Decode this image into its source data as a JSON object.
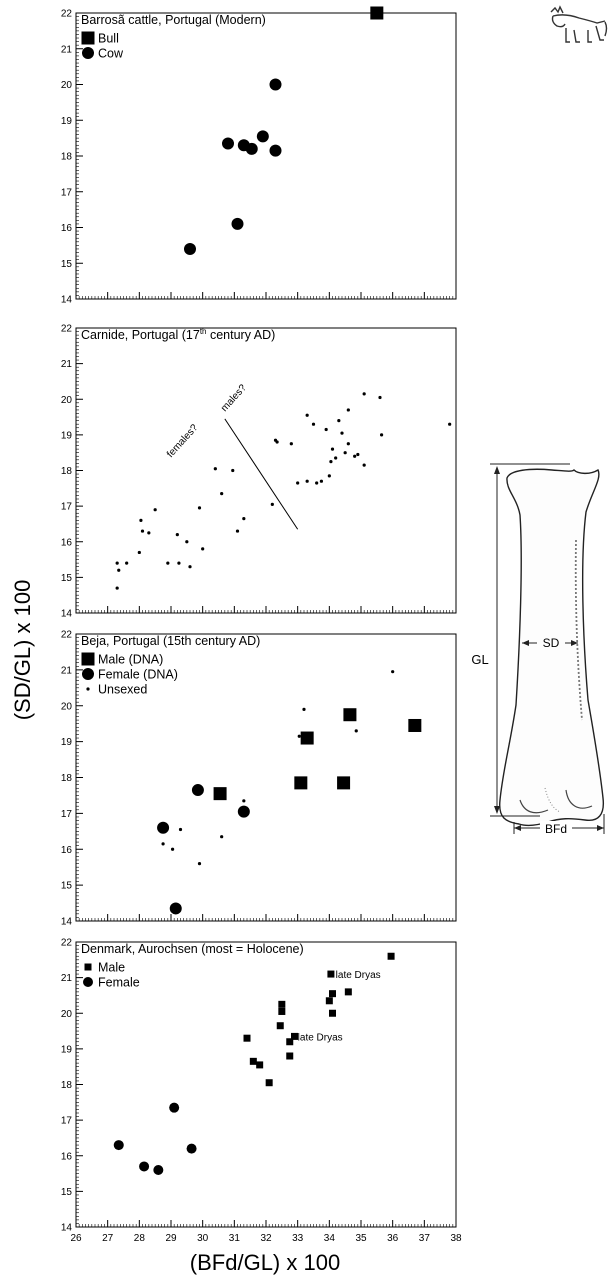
{
  "figure": {
    "ylabel": "(SD/GL) x 100",
    "xlabel": "(BFd/GL) x 100",
    "x_ticks": [
      "26",
      "27",
      "28",
      "29",
      "30",
      "31",
      "32",
      "33",
      "34",
      "35",
      "36",
      "37",
      "38"
    ],
    "y_ticks": [
      "14",
      "15",
      "16",
      "17",
      "18",
      "19",
      "20",
      "21",
      "22"
    ],
    "diagram_labels": {
      "gl": "GL",
      "sd": "SD",
      "bfd": "BFd"
    },
    "icon": "cow-icon"
  },
  "chart_data": [
    {
      "type": "scatter",
      "title": "Barrosã cattle, Portugal (Modern)",
      "xlim": [
        26,
        38
      ],
      "ylim": [
        14,
        22
      ],
      "legend": {
        "placement": "top-left",
        "entries": [
          "Bull",
          "Cow"
        ]
      },
      "series": [
        {
          "name": "Bull",
          "marker": "square-large",
          "points": [
            [
              35.5,
              22.0
            ]
          ]
        },
        {
          "name": "Cow",
          "marker": "circle-large",
          "points": [
            [
              29.6,
              15.4
            ],
            [
              30.8,
              18.35
            ],
            [
              31.1,
              16.1
            ],
            [
              31.3,
              18.3
            ],
            [
              31.55,
              18.2
            ],
            [
              31.9,
              18.55
            ],
            [
              32.3,
              18.15
            ],
            [
              32.3,
              20.0
            ]
          ]
        }
      ]
    },
    {
      "type": "scatter",
      "title_main": "Carnide, Portugal (17",
      "title_sup": "th",
      "title_rest": " century AD)",
      "xlim": [
        26,
        38
      ],
      "ylim": [
        14,
        22
      ],
      "annotations": [
        "females?",
        "males?"
      ],
      "divider": [
        [
          30.7,
          19.45
        ],
        [
          33.0,
          16.35
        ]
      ],
      "series": [
        {
          "name": "",
          "marker": "dot",
          "points": [
            [
              27.3,
              14.7
            ],
            [
              27.3,
              15.4
            ],
            [
              27.35,
              15.2
            ],
            [
              27.6,
              15.4
            ],
            [
              28.0,
              15.7
            ],
            [
              28.05,
              16.6
            ],
            [
              28.1,
              16.3
            ],
            [
              28.3,
              16.25
            ],
            [
              28.5,
              16.9
            ],
            [
              28.9,
              15.4
            ],
            [
              29.2,
              16.2
            ],
            [
              29.25,
              15.4
            ],
            [
              29.6,
              15.3
            ],
            [
              29.5,
              16.0
            ],
            [
              29.9,
              16.95
            ],
            [
              30.0,
              15.8
            ],
            [
              30.4,
              18.05
            ],
            [
              30.6,
              17.35
            ],
            [
              30.95,
              18.0
            ],
            [
              31.1,
              16.3
            ],
            [
              31.3,
              16.65
            ],
            [
              32.2,
              17.05
            ],
            [
              32.3,
              18.85
            ],
            [
              32.35,
              18.8
            ],
            [
              32.8,
              18.75
            ],
            [
              33.0,
              17.65
            ],
            [
              33.3,
              19.55
            ],
            [
              33.3,
              17.7
            ],
            [
              33.5,
              19.3
            ],
            [
              33.6,
              17.65
            ],
            [
              33.75,
              17.7
            ],
            [
              33.9,
              19.15
            ],
            [
              34.0,
              17.85
            ],
            [
              34.05,
              18.25
            ],
            [
              34.1,
              18.6
            ],
            [
              34.2,
              18.35
            ],
            [
              34.3,
              19.4
            ],
            [
              34.4,
              19.05
            ],
            [
              34.5,
              18.5
            ],
            [
              34.6,
              18.75
            ],
            [
              34.6,
              19.7
            ],
            [
              34.8,
              18.4
            ],
            [
              34.9,
              18.45
            ],
            [
              35.1,
              18.15
            ],
            [
              35.1,
              20.15
            ],
            [
              35.6,
              20.05
            ],
            [
              35.65,
              19.0
            ],
            [
              37.8,
              19.3
            ]
          ]
        }
      ]
    },
    {
      "type": "scatter",
      "title": "Beja, Portugal (15th century AD)",
      "xlim": [
        26,
        38
      ],
      "ylim": [
        14,
        22
      ],
      "legend": {
        "placement": "top-left",
        "entries": [
          "Male (DNA)",
          "Female (DNA)",
          "Unsexed"
        ]
      },
      "series": [
        {
          "name": "Male (DNA)",
          "marker": "square-large",
          "points": [
            [
              30.55,
              17.55
            ],
            [
              33.1,
              17.85
            ],
            [
              33.3,
              19.1
            ],
            [
              34.45,
              17.85
            ],
            [
              34.65,
              19.75
            ],
            [
              36.7,
              19.45
            ]
          ]
        },
        {
          "name": "Female (DNA)",
          "marker": "circle-large",
          "points": [
            [
              28.75,
              16.6
            ],
            [
              29.15,
              14.35
            ],
            [
              29.85,
              17.65
            ],
            [
              31.3,
              17.05
            ]
          ]
        },
        {
          "name": "Unsexed",
          "marker": "dot",
          "points": [
            [
              28.75,
              16.15
            ],
            [
              29.05,
              16.0
            ],
            [
              29.3,
              16.55
            ],
            [
              29.9,
              15.6
            ],
            [
              30.6,
              16.35
            ],
            [
              31.3,
              17.35
            ],
            [
              33.05,
              19.15
            ],
            [
              33.2,
              19.9
            ],
            [
              34.85,
              19.3
            ],
            [
              36.0,
              20.95
            ]
          ]
        }
      ]
    },
    {
      "type": "scatter",
      "title": "Denmark, Aurochsen (most = Holocene)",
      "xlim": [
        26,
        38
      ],
      "ylim": [
        14,
        22
      ],
      "legend": {
        "placement": "top-left",
        "entries": [
          "Male",
          "Female"
        ]
      },
      "annotations": [
        "late Dryas",
        "late Dryas"
      ],
      "series": [
        {
          "name": "Male",
          "marker": "square-small",
          "points": [
            [
              31.4,
              19.3
            ],
            [
              31.6,
              18.65
            ],
            [
              31.8,
              18.55
            ],
            [
              32.1,
              18.05
            ],
            [
              32.45,
              19.65
            ],
            [
              32.5,
              20.05
            ],
            [
              32.5,
              20.25
            ],
            [
              32.75,
              18.8
            ],
            [
              32.75,
              19.2
            ],
            [
              32.9,
              19.35
            ],
            [
              34.0,
              20.35
            ],
            [
              34.05,
              21.1
            ],
            [
              34.1,
              20.55
            ],
            [
              34.1,
              20.0
            ],
            [
              34.6,
              20.6
            ],
            [
              35.95,
              21.6
            ]
          ]
        },
        {
          "name": "Female",
          "marker": "circle-medium",
          "points": [
            [
              27.35,
              16.3
            ],
            [
              28.15,
              15.7
            ],
            [
              28.6,
              15.6
            ],
            [
              29.1,
              17.35
            ],
            [
              29.65,
              16.2
            ]
          ]
        }
      ]
    }
  ]
}
